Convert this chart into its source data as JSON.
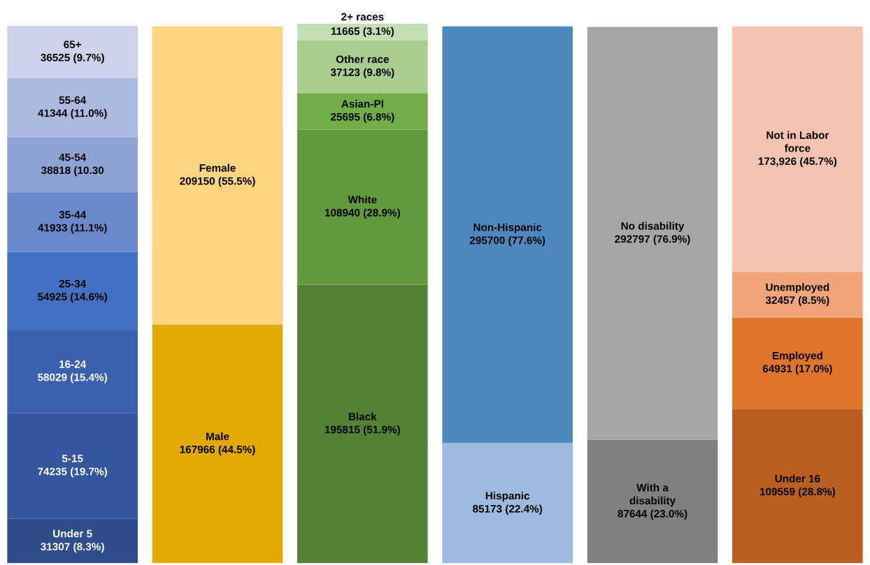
{
  "chart_data": {
    "type": "bar",
    "stacked": true,
    "categories": [
      null,
      null,
      null,
      null,
      null,
      null
    ],
    "grid": false,
    "legend": false,
    "series": [
      {
        "name": "Under 5",
        "color": "#2f4d8a",
        "values": [
          8.3,
          null,
          null,
          null,
          null,
          null
        ],
        "value_labels": [
          "31307 (8.3%)",
          null,
          null,
          null,
          null,
          null
        ]
      },
      {
        "name": "5-15",
        "color": "#34569e",
        "values": [
          19.7,
          null,
          null,
          null,
          null,
          null
        ],
        "value_labels": [
          "74235 (19.7%)",
          null,
          null,
          null,
          null,
          null
        ]
      },
      {
        "name": "16-24",
        "color": "#3b60ad",
        "values": [
          15.4,
          null,
          null,
          null,
          null,
          null
        ],
        "value_labels": [
          "58029 (15.4%)",
          null,
          null,
          null,
          null,
          null
        ]
      },
      {
        "name": "25-34",
        "color": "#4470c2",
        "values": [
          14.6,
          null,
          null,
          null,
          null,
          null
        ],
        "value_labels": [
          "54925 (14.6%)",
          null,
          null,
          null,
          null,
          null
        ]
      },
      {
        "name": "35-44",
        "color": "#6a89cc",
        "values": [
          11.1,
          null,
          null,
          null,
          null,
          null
        ],
        "value_labels": [
          "41933 (11.1%)",
          null,
          null,
          null,
          null,
          null
        ]
      },
      {
        "name": "45-54",
        "color": "#8ea2d4",
        "values": [
          10.3,
          null,
          null,
          null,
          null,
          null
        ],
        "value_labels": [
          "38818 (10.30",
          null,
          null,
          null,
          null,
          null
        ]
      },
      {
        "name": "55-64",
        "color": "#acb9e0",
        "values": [
          11.0,
          null,
          null,
          null,
          null,
          null
        ],
        "value_labels": [
          "41344 (11.0%)",
          null,
          null,
          null,
          null,
          null
        ]
      },
      {
        "name": "65+",
        "color": "#cbd2ea",
        "values": [
          9.7,
          null,
          null,
          null,
          null,
          null
        ],
        "value_labels": [
          "36525 (9.7%)",
          null,
          null,
          null,
          null,
          null
        ]
      },
      {
        "name": "Male",
        "color": "#e2a900",
        "values": [
          null,
          44.5,
          null,
          null,
          null,
          null
        ],
        "value_labels": [
          null,
          "167966 (44.5%)",
          null,
          null,
          null,
          null
        ]
      },
      {
        "name": "Female",
        "color": "#ffd480",
        "values": [
          null,
          55.5,
          null,
          null,
          null,
          null
        ],
        "value_labels": [
          null,
          "209150 (55.5%)",
          null,
          null,
          null,
          null
        ]
      },
      {
        "name": "Black",
        "color": "#548235",
        "values": [
          null,
          null,
          51.9,
          null,
          null,
          null
        ],
        "value_labels": [
          null,
          null,
          "195815 (51.9%)",
          null,
          null,
          null
        ]
      },
      {
        "name": "White",
        "color": "#629a3e",
        "values": [
          null,
          null,
          28.9,
          null,
          null,
          null
        ],
        "value_labels": [
          null,
          null,
          "108940 (28.9%)",
          null,
          null,
          null
        ]
      },
      {
        "name": "Asian-PI",
        "color": "#70ad47",
        "values": [
          null,
          null,
          6.8,
          null,
          null,
          null
        ],
        "value_labels": [
          null,
          null,
          "25695 (6.8%)",
          null,
          null,
          null
        ]
      },
      {
        "name": "Other race",
        "color": "#a8cd8e",
        "values": [
          null,
          null,
          9.8,
          null,
          null,
          null
        ],
        "value_labels": [
          null,
          null,
          "37123 (9.8%)",
          null,
          null,
          null
        ]
      },
      {
        "name": "2+ races",
        "color": "#c5dfb5",
        "values": [
          null,
          null,
          3.1,
          null,
          null,
          null
        ],
        "value_labels": [
          null,
          null,
          "11665 (3.1%)",
          null,
          null,
          null
        ]
      },
      {
        "name": "Hispanic",
        "color": "#9dbadf",
        "values": [
          null,
          null,
          null,
          22.4,
          null,
          null
        ],
        "value_labels": [
          null,
          null,
          null,
          "85173 (22.4%)",
          null,
          null
        ]
      },
      {
        "name": "Non-Hispanic",
        "color": "#4f88bf",
        "values": [
          null,
          null,
          null,
          77.6,
          null,
          null
        ],
        "value_labels": [
          null,
          null,
          null,
          "295700 (77.6%)",
          null,
          null
        ]
      },
      {
        "name": "With a disability",
        "color": "#808080",
        "values": [
          null,
          null,
          null,
          null,
          23.0,
          null
        ],
        "value_labels": [
          null,
          null,
          null,
          null,
          "87644 (23.0%)",
          null
        ]
      },
      {
        "name": "No disability",
        "color": "#a6a6a6",
        "values": [
          null,
          null,
          null,
          null,
          76.9,
          null
        ],
        "value_labels": [
          null,
          null,
          null,
          null,
          "292797 (76.9%)",
          null
        ]
      },
      {
        "name": "Under 16",
        "color": "#ba5f22",
        "values": [
          null,
          null,
          null,
          null,
          null,
          28.8
        ],
        "value_labels": [
          null,
          null,
          null,
          null,
          null,
          "109559 (28.8%)"
        ]
      },
      {
        "name": "Employed",
        "color": "#df752b",
        "values": [
          null,
          null,
          null,
          null,
          null,
          17.0
        ],
        "value_labels": [
          null,
          null,
          null,
          null,
          null,
          "64931 (17.0%)"
        ]
      },
      {
        "name": "Unemployed",
        "color": "#f0a478",
        "values": [
          null,
          null,
          null,
          null,
          null,
          8.5
        ],
        "value_labels": [
          null,
          null,
          null,
          null,
          null,
          "32457 (8.5%)"
        ]
      },
      {
        "name": "Not in Labor force",
        "color": "#f4c2b1",
        "values": [
          null,
          null,
          null,
          null,
          null,
          45.7
        ],
        "value_labels": [
          null,
          null,
          null,
          null,
          null,
          "173,926 (45.7%)"
        ]
      }
    ]
  }
}
